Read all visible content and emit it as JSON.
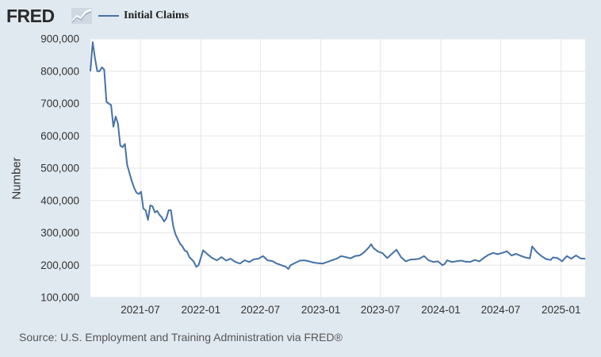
{
  "header": {
    "logo_text": "FRED",
    "logo_icon": "line-chart-icon",
    "legend_label": "Initial Claims"
  },
  "colors": {
    "background": "#e1e9f0",
    "plot_background": "#ffffff",
    "series": "#4572a7",
    "grid": "#e6e6e6"
  },
  "source_text": "Source: U.S. Employment and Training Administration via FRED®",
  "chart_data": {
    "type": "line",
    "title": "",
    "xlabel": "",
    "ylabel": "Number",
    "ylim": [
      100000,
      900000
    ],
    "xlim": [
      "2021-01-30",
      "2025-03-15"
    ],
    "y_ticks": [
      100000,
      200000,
      300000,
      400000,
      500000,
      600000,
      700000,
      800000,
      900000
    ],
    "y_tick_labels": [
      "100,000",
      "200,000",
      "300,000",
      "400,000",
      "500,000",
      "600,000",
      "700,000",
      "800,000",
      "900,000"
    ],
    "x_ticks": [
      "2021-07-01",
      "2022-01-01",
      "2022-07-01",
      "2023-01-01",
      "2023-07-01",
      "2024-01-01",
      "2024-07-01",
      "2025-01-01"
    ],
    "x_tick_labels": [
      "2021-07",
      "2022-01",
      "2022-07",
      "2023-01",
      "2023-07",
      "2024-01",
      "2024-07",
      "2025-01"
    ],
    "grid": true,
    "legend": "top-left",
    "series": [
      {
        "name": "Initial Claims",
        "x": [
          "2021-01-30",
          "2021-02-06",
          "2021-02-13",
          "2021-02-20",
          "2021-02-27",
          "2021-03-06",
          "2021-03-13",
          "2021-03-20",
          "2021-03-27",
          "2021-04-03",
          "2021-04-10",
          "2021-04-17",
          "2021-04-24",
          "2021-05-01",
          "2021-05-08",
          "2021-05-15",
          "2021-05-22",
          "2021-05-29",
          "2021-06-05",
          "2021-06-12",
          "2021-06-19",
          "2021-06-26",
          "2021-07-03",
          "2021-07-10",
          "2021-07-17",
          "2021-07-24",
          "2021-07-31",
          "2021-08-07",
          "2021-08-14",
          "2021-08-21",
          "2021-08-28",
          "2021-09-04",
          "2021-09-11",
          "2021-09-18",
          "2021-09-25",
          "2021-10-02",
          "2021-10-09",
          "2021-10-16",
          "2021-10-23",
          "2021-10-30",
          "2021-11-06",
          "2021-11-13",
          "2021-11-20",
          "2021-11-27",
          "2021-12-04",
          "2021-12-11",
          "2021-12-18",
          "2021-12-25",
          "2022-01-08",
          "2022-01-22",
          "2022-02-05",
          "2022-02-19",
          "2022-03-05",
          "2022-03-19",
          "2022-04-02",
          "2022-04-16",
          "2022-04-30",
          "2022-05-14",
          "2022-05-28",
          "2022-06-11",
          "2022-06-25",
          "2022-07-09",
          "2022-07-23",
          "2022-08-06",
          "2022-08-20",
          "2022-09-03",
          "2022-09-17",
          "2022-09-24",
          "2022-10-01",
          "2022-10-15",
          "2022-10-29",
          "2022-11-12",
          "2022-11-26",
          "2022-12-10",
          "2022-12-24",
          "2023-01-07",
          "2023-01-21",
          "2023-02-04",
          "2023-02-18",
          "2023-03-04",
          "2023-03-18",
          "2023-04-01",
          "2023-04-15",
          "2023-04-29",
          "2023-05-13",
          "2023-05-27",
          "2023-06-03",
          "2023-06-10",
          "2023-06-24",
          "2023-07-08",
          "2023-07-22",
          "2023-08-05",
          "2023-08-19",
          "2023-09-02",
          "2023-09-16",
          "2023-09-30",
          "2023-10-14",
          "2023-10-28",
          "2023-11-11",
          "2023-11-25",
          "2023-12-09",
          "2023-12-23",
          "2024-01-06",
          "2024-01-13",
          "2024-01-20",
          "2024-02-03",
          "2024-02-17",
          "2024-03-02",
          "2024-03-16",
          "2024-03-30",
          "2024-04-13",
          "2024-04-27",
          "2024-05-11",
          "2024-05-25",
          "2024-06-08",
          "2024-06-22",
          "2024-07-06",
          "2024-07-20",
          "2024-08-03",
          "2024-08-17",
          "2024-08-31",
          "2024-09-14",
          "2024-09-28",
          "2024-10-05",
          "2024-10-19",
          "2024-11-02",
          "2024-11-16",
          "2024-11-30",
          "2024-12-07",
          "2024-12-21",
          "2025-01-04",
          "2025-01-18",
          "2025-02-01",
          "2025-02-15",
          "2025-03-01",
          "2025-03-15"
        ],
        "values": [
          800000,
          890000,
          840000,
          800000,
          800000,
          812000,
          805000,
          705000,
          700000,
          695000,
          628000,
          660000,
          637000,
          570000,
          565000,
          575000,
          510000,
          485000,
          460000,
          440000,
          425000,
          420000,
          427000,
          375000,
          370000,
          340000,
          385000,
          382000,
          363000,
          368000,
          356000,
          348000,
          335000,
          345000,
          370000,
          370000,
          320000,
          295000,
          280000,
          266000,
          258000,
          245000,
          242000,
          225000,
          218000,
          210000,
          195000,
          200000,
          246000,
          233000,
          222000,
          215000,
          225000,
          214000,
          220000,
          210000,
          205000,
          215000,
          210000,
          218000,
          220000,
          228000,
          215000,
          213000,
          205000,
          200000,
          195000,
          188000,
          200000,
          207000,
          214000,
          215000,
          212000,
          208000,
          206000,
          205000,
          210000,
          215000,
          220000,
          228000,
          225000,
          221000,
          228000,
          230000,
          240000,
          255000,
          265000,
          253000,
          242000,
          237000,
          222000,
          235000,
          248000,
          225000,
          212000,
          217000,
          218000,
          220000,
          228000,
          215000,
          210000,
          212000,
          200000,
          204000,
          215000,
          210000,
          212000,
          214000,
          211000,
          210000,
          216000,
          212000,
          223000,
          232000,
          238000,
          234000,
          238000,
          243000,
          230000,
          235000,
          229000,
          224000,
          221000,
          258000,
          240000,
          228000,
          219000,
          216000,
          224000,
          222000,
          212000,
          228000,
          220000,
          230000,
          221000,
          220000
        ]
      }
    ]
  }
}
